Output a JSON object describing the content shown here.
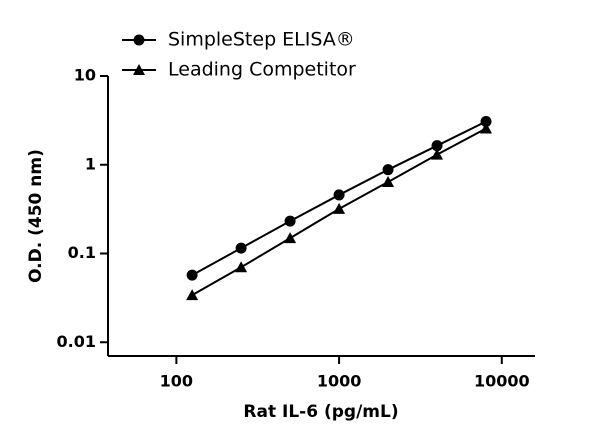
{
  "chart_data": {
    "type": "line",
    "x_label": "Rat IL-6 (pg/mL)",
    "y_label": "O.D. (450 nm)",
    "x": [
      125,
      250,
      500,
      1000,
      2000,
      4000,
      8000
    ],
    "series": [
      {
        "name": "SimpleStep ELISA®",
        "color": "#000000",
        "marker": "circle",
        "values": [
          0.057,
          0.115,
          0.232,
          0.457,
          0.88,
          1.64,
          3.07
        ]
      },
      {
        "name": "Leading Competitor",
        "color": "#000000",
        "marker": "triangle",
        "values": [
          0.034,
          0.07,
          0.149,
          0.318,
          0.64,
          1.3,
          2.56
        ]
      }
    ],
    "xlim": [
      38,
      16000
    ],
    "xticks": [
      100,
      1000,
      10000
    ],
    "x_log": true,
    "ylim": [
      0.007,
      10
    ],
    "yticks": [
      0.01,
      0.1,
      1,
      10
    ],
    "y_log": true,
    "legend": "top-left"
  }
}
